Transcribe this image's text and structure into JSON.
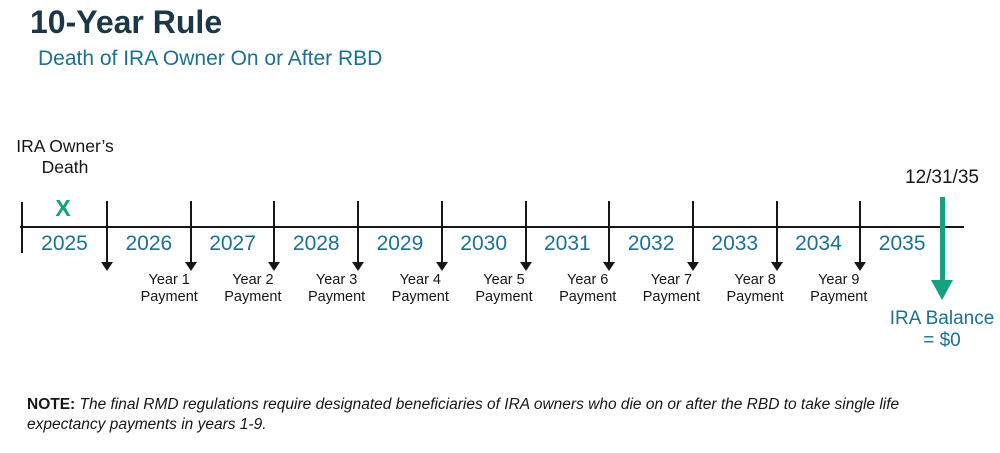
{
  "title": "10-Year Rule",
  "subtitle": "Death of IRA Owner On or After RBD",
  "colors": {
    "title_text": "#1b3847",
    "teal_blue_text": "#1a7191",
    "teal_green_accent": "#14a17d",
    "line_black": "#161616"
  },
  "timeline": {
    "death_label": "IRA Owner’s\nDeath",
    "death_marker": "X",
    "years": [
      "2025",
      "2026",
      "2027",
      "2028",
      "2029",
      "2030",
      "2031",
      "2032",
      "2033",
      "2034",
      "2035"
    ],
    "payments": [
      "Year 1\nPayment",
      "Year 2\nPayment",
      "Year 3\nPayment",
      "Year 4\nPayment",
      "Year 5\nPayment",
      "Year 6\nPayment",
      "Year 7\nPayment",
      "Year 8\nPayment",
      "Year 9\nPayment"
    ],
    "end_date": "12/31/35",
    "end_balance_label": "IRA Balance\n= $0"
  },
  "note": {
    "prefix": "NOTE:",
    "body": " The final RMD regulations require designated beneficiaries of IRA owners who die on or after the RBD to take single life expectancy payments in years 1-9."
  }
}
